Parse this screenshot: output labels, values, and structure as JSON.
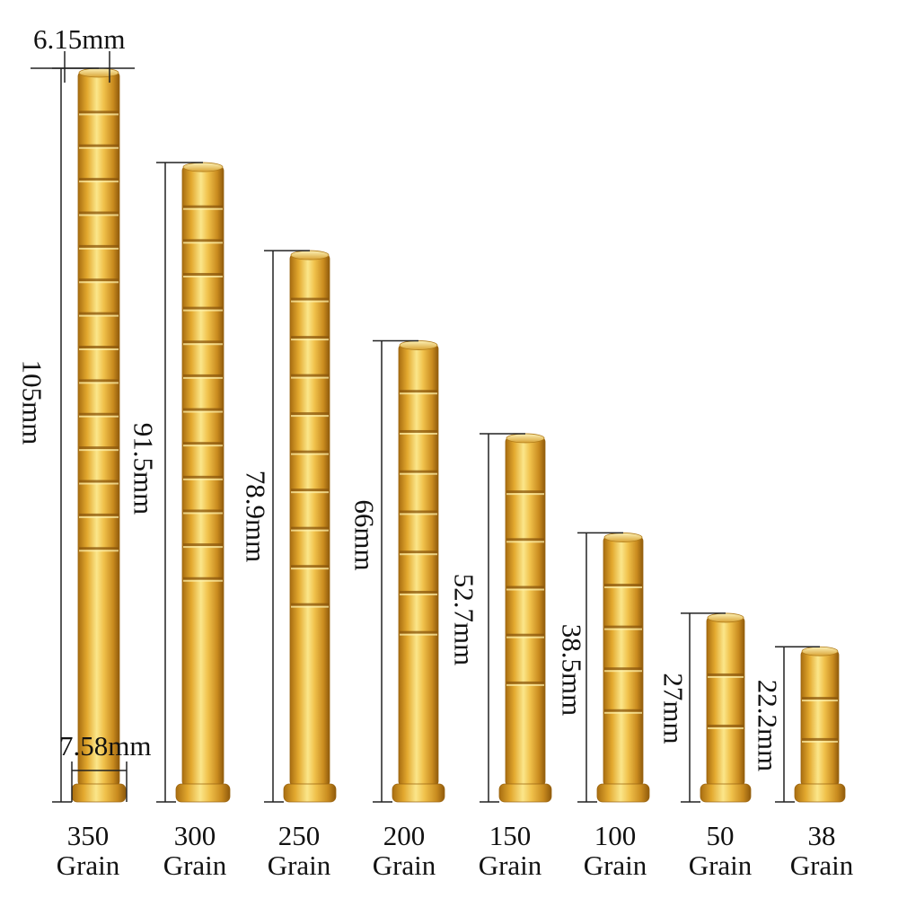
{
  "top_diameter": "6.15mm",
  "bottom_diameter": "7.58mm",
  "colors": {
    "brass_light": "#fbe68a",
    "brass_mid": "#e3a92f",
    "brass_dark": "#a86d10",
    "line": "#222222"
  },
  "inserts": [
    {
      "grain": "350",
      "unit": "Grain",
      "length": "105mm",
      "length_mm": 105
    },
    {
      "grain": "300",
      "unit": "Grain",
      "length": "91.5mm",
      "length_mm": 91.5
    },
    {
      "grain": "250",
      "unit": "Grain",
      "length": "78.9mm",
      "length_mm": 78.9
    },
    {
      "grain": "200",
      "unit": "Grain",
      "length": "66mm",
      "length_mm": 66
    },
    {
      "grain": "150",
      "unit": "Grain",
      "length": "52.7mm",
      "length_mm": 52.7
    },
    {
      "grain": "100",
      "unit": "Grain",
      "length": "38.5mm",
      "length_mm": 38.5
    },
    {
      "grain": "50",
      "unit": "Grain",
      "length": "27mm",
      "length_mm": 27
    },
    {
      "grain": "38",
      "unit": "Grain",
      "length": "22.2mm",
      "length_mm": 22.2
    }
  ]
}
